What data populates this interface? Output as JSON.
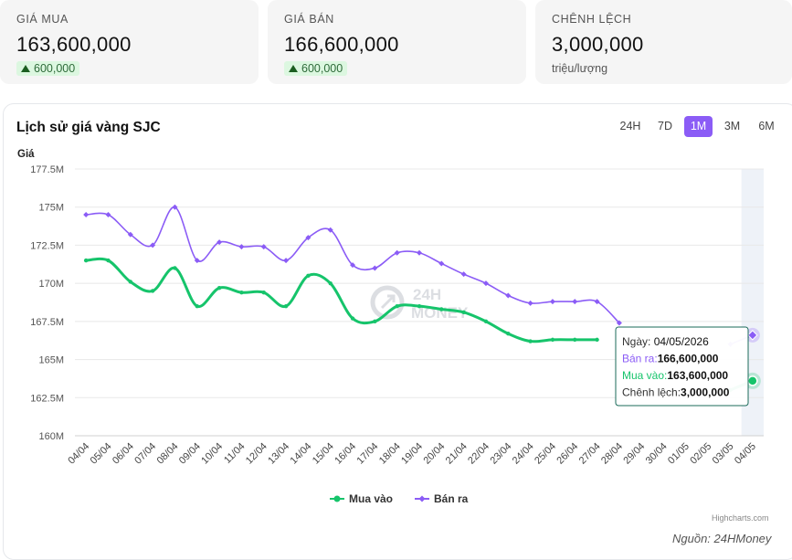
{
  "cards": [
    {
      "label": "GIÁ MUA",
      "value": "163,600,000",
      "change": "600,000"
    },
    {
      "label": "GIÁ BÁN",
      "value": "166,600,000",
      "change": "600,000"
    },
    {
      "label": "CHÊNH LỆCH",
      "value": "3,000,000",
      "unit": "triệu/lượng"
    }
  ],
  "panel": {
    "title": "Lịch sử giá vàng SJC",
    "ranges": [
      "24H",
      "7D",
      "1M",
      "3M",
      "6M"
    ],
    "active_range": "1M"
  },
  "watermark": {
    "line1": "24H",
    "line2": "MONEY"
  },
  "tooltip": {
    "date_label": "Ngày:",
    "date": "04/05/2026",
    "sell_label": "Bán ra:",
    "sell": "166,600,000",
    "buy_label": "Mua vào:",
    "buy": "163,600,000",
    "diff_label": "Chênh lệch:",
    "diff": "3,000,000"
  },
  "credits": "Highcharts.com",
  "source": "Nguồn: 24HMoney",
  "colors": {
    "buy": "#16c46b",
    "sell": "#8b5cf6",
    "accent": "#8b5cf6"
  },
  "chart_data": {
    "type": "line",
    "ylabel": "Giá",
    "ylim": [
      160,
      177.5
    ],
    "ytick_labels": [
      "160M",
      "162.5M",
      "165M",
      "167.5M",
      "170M",
      "172.5M",
      "175M",
      "177.5M"
    ],
    "ytick_values": [
      160,
      162.5,
      165,
      167.5,
      170,
      172.5,
      175,
      177.5
    ],
    "categories": [
      "04/04",
      "05/04",
      "06/04",
      "07/04",
      "08/04",
      "09/04",
      "10/04",
      "11/04",
      "12/04",
      "13/04",
      "14/04",
      "15/04",
      "16/04",
      "17/04",
      "18/04",
      "19/04",
      "20/04",
      "21/04",
      "22/04",
      "23/04",
      "24/04",
      "25/04",
      "26/04",
      "27/04",
      "28/04",
      "29/04",
      "30/04",
      "01/05",
      "02/05",
      "03/05",
      "04/05"
    ],
    "grid": true,
    "legend_position": "bottom-center",
    "series": [
      {
        "name": "Mua vào",
        "values": [
          171.5,
          171.5,
          170.1,
          169.5,
          171.0,
          168.5,
          169.7,
          169.4,
          169.4,
          168.5,
          170.5,
          170.0,
          167.7,
          167.5,
          168.5,
          168.5,
          168.3,
          168.1,
          167.5,
          166.7,
          166.2,
          166.3,
          166.3,
          166.3,
          null,
          null,
          null,
          null,
          null,
          163.0,
          163.6
        ]
      },
      {
        "name": "Bán ra",
        "values": [
          174.5,
          174.5,
          173.2,
          172.5,
          175.0,
          171.5,
          172.7,
          172.4,
          172.4,
          171.5,
          173.0,
          173.5,
          171.2,
          171.0,
          172.0,
          172.0,
          171.3,
          170.6,
          170.0,
          169.2,
          168.7,
          168.8,
          168.8,
          168.8,
          167.4,
          null,
          null,
          null,
          null,
          166.0,
          166.6
        ]
      }
    ]
  }
}
